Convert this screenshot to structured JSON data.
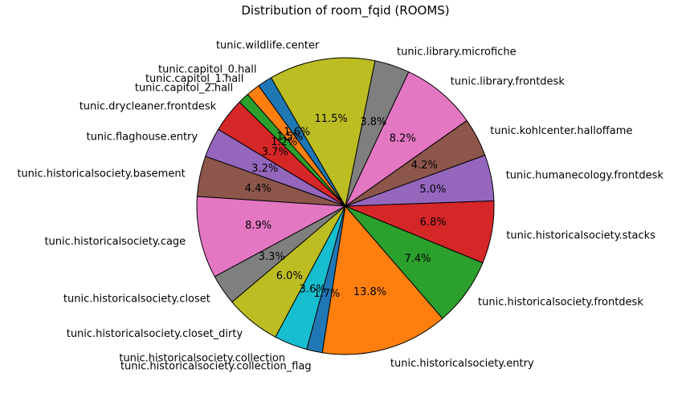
{
  "chart_data": {
    "type": "pie",
    "title": "Distribution of room_fqid (ROOMS)",
    "start_angle_deg": 120,
    "direction": "counterclockwise",
    "edge_color": "#000000",
    "slices": [
      {
        "label": "tunic.capitol_0.hall",
        "value": 1.6,
        "pct_label": "1.6%",
        "color": "#1f77b4"
      },
      {
        "label": "tunic.capitol_1.hall",
        "value": 1.5,
        "pct_label": "1.5%",
        "color": "#ff7f0e"
      },
      {
        "label": "tunic.capitol_2.hall",
        "value": 1.2,
        "pct_label": "1.2%",
        "color": "#2ca02c"
      },
      {
        "label": "tunic.drycleaner.frontdesk",
        "value": 3.7,
        "pct_label": "3.7%",
        "color": "#d62728"
      },
      {
        "label": "tunic.flaghouse.entry",
        "value": 3.2,
        "pct_label": "3.2%",
        "color": "#9467bd"
      },
      {
        "label": "tunic.historicalsociety.basement",
        "value": 4.4,
        "pct_label": "4.4%",
        "color": "#8c564b"
      },
      {
        "label": "tunic.historicalsociety.cage",
        "value": 8.9,
        "pct_label": "8.9%",
        "color": "#e377c2"
      },
      {
        "label": "tunic.historicalsociety.closet",
        "value": 3.3,
        "pct_label": "3.3%",
        "color": "#7f7f7f"
      },
      {
        "label": "tunic.historicalsociety.closet_dirty",
        "value": 6.0,
        "pct_label": "6.0%",
        "color": "#bcbd22"
      },
      {
        "label": "tunic.historicalsociety.collection",
        "value": 3.6,
        "pct_label": "3.6%",
        "color": "#17becf"
      },
      {
        "label": "tunic.historicalsociety.collection_flag",
        "value": 1.7,
        "pct_label": "1.7%",
        "color": "#1f77b4"
      },
      {
        "label": "tunic.historicalsociety.entry",
        "value": 13.8,
        "pct_label": "13.8%",
        "color": "#ff7f0e"
      },
      {
        "label": "tunic.historicalsociety.frontdesk",
        "value": 7.4,
        "pct_label": "7.4%",
        "color": "#2ca02c"
      },
      {
        "label": "tunic.historicalsociety.stacks",
        "value": 6.8,
        "pct_label": "6.8%",
        "color": "#d62728"
      },
      {
        "label": "tunic.humanecology.frontdesk",
        "value": 5.0,
        "pct_label": "5.0%",
        "color": "#9467bd"
      },
      {
        "label": "tunic.kohlcenter.halloffame",
        "value": 4.2,
        "pct_label": "4.2%",
        "color": "#8c564b"
      },
      {
        "label": "tunic.library.frontdesk",
        "value": 8.2,
        "pct_label": "8.2%",
        "color": "#e377c2"
      },
      {
        "label": "tunic.library.microfiche",
        "value": 3.8,
        "pct_label": "3.8%",
        "color": "#7f7f7f"
      },
      {
        "label": "tunic.wildlife.center",
        "value": 11.5,
        "pct_label": "11.5%",
        "color": "#bcbd22"
      }
    ]
  }
}
